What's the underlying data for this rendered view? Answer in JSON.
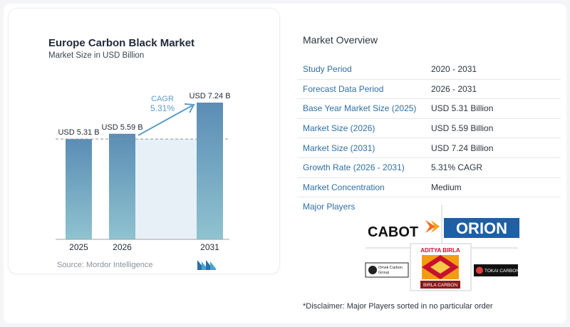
{
  "chart_data": {
    "type": "bar",
    "title": "Europe Carbon Black Market",
    "subtitle": "Market Size in USD Billion",
    "categories": [
      "2025",
      "2026",
      "2031"
    ],
    "values": [
      5.31,
      5.59,
      7.24
    ],
    "value_labels": [
      "USD 5.31 B",
      "USD 5.59 B",
      "USD 7.24 B"
    ],
    "cagr_label": "CAGR",
    "cagr_value": "5.31%",
    "ylim": [
      0,
      7.6
    ],
    "grid": false,
    "colors": {
      "bar_top": "#5b8db5",
      "bar_bottom": "#8fc3cf",
      "band": "#e6f0f6",
      "arrow": "#5d9cc6"
    }
  },
  "source": "Source:  Mordor Intelligence",
  "overview": {
    "title": "Market Overview",
    "rows": [
      {
        "key": "Study Period",
        "value": "2020 - 2031"
      },
      {
        "key": "Forecast Data Period",
        "value": "2026 - 2031"
      },
      {
        "key": "Base Year Market Size (2025)",
        "value": "USD 5.31 Billion"
      },
      {
        "key": "Market Size (2026)",
        "value": "USD 5.59 Billion"
      },
      {
        "key": "Market Size (2031)",
        "value": "USD 7.24 Billion"
      },
      {
        "key": "Growth Rate (2026 - 2031)",
        "value": "5.31% CAGR"
      },
      {
        "key": "Market Concentration",
        "value": "Medium"
      }
    ]
  },
  "players": {
    "title": "Major Players",
    "logos": [
      "CABOT",
      "ORION",
      "Omsk Carbon Group",
      "ADITYA BIRLA",
      "BIRLA CARBON",
      "TOKAI CARBON"
    ]
  },
  "disclaimer": "*Disclaimer: Major Players sorted in no particular order"
}
